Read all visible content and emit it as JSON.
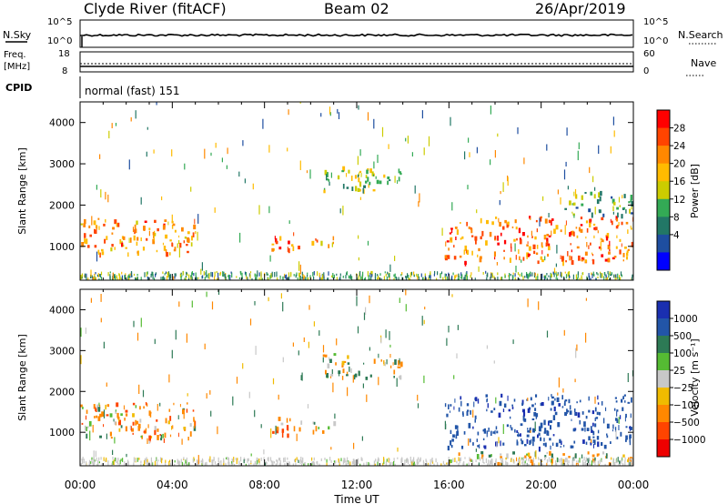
{
  "header": {
    "station": "Clyde River (fitACF)",
    "beam": "Beam 02",
    "date": "26/Apr/2019"
  },
  "nsky_panel": {
    "label": "N.Sky",
    "left_ticks": [
      "10^5",
      "10^0"
    ],
    "right_ticks": [
      "10^5",
      "10^0"
    ],
    "right_label": "N.Search"
  },
  "freq_panel": {
    "label_line1": "Freq.",
    "label_line2": "[MHz]",
    "left_ticks": [
      "18",
      "8"
    ],
    "right_ticks": [
      "60",
      "0"
    ],
    "right_label": "Nave"
  },
  "cpid_panel": {
    "label": "CPID",
    "value": "normal (fast) 151"
  },
  "power_panel": {
    "ylabel": "Slant Range [km]",
    "yticks": [
      "4000",
      "3000",
      "2000",
      "1000"
    ],
    "colorbar_label": "Power [dB]",
    "colorbar_ticks": [
      "28",
      "24",
      "20",
      "16",
      "12",
      "8",
      "4"
    ],
    "colorbar_colors": [
      "#ff0000",
      "#ff4400",
      "#ff8800",
      "#ffbb00",
      "#cccc00",
      "#33aa55",
      "#227766",
      "#1e4ea0",
      "#0000ff"
    ]
  },
  "velocity_panel": {
    "ylabel": "Slant Range [km]",
    "yticks": [
      "4000",
      "3000",
      "2000",
      "1000"
    ],
    "colorbar_label": "Velocity [m s⁻¹]",
    "colorbar_ticks": [
      "1000",
      "500",
      "100",
      "25",
      "−25",
      "−100",
      "−500",
      "−1000"
    ],
    "colorbar_colors": [
      "#1a2fb0",
      "#2255a8",
      "#2d7a55",
      "#55bb33",
      "#c8c8c8",
      "#f0bb00",
      "#ff8800",
      "#ff4400",
      "#ee0000"
    ]
  },
  "xaxis": {
    "label": "Time UT",
    "ticks": [
      "00:00",
      "04:00",
      "08:00",
      "12:00",
      "16:00",
      "20:00",
      "00:00"
    ]
  },
  "chart_data": {
    "type": "heatmap",
    "x_range_hours": [
      0,
      24
    ],
    "y_range_km": [
      180,
      4500
    ],
    "power_clusters": [
      {
        "t0": 0.0,
        "t1": 5.0,
        "r0": 800,
        "r1": 1650,
        "value_db": 22
      },
      {
        "t0": 8.2,
        "t1": 9.6,
        "r0": 900,
        "r1": 1350,
        "value_db": 26
      },
      {
        "t0": 10.0,
        "t1": 11.0,
        "r0": 950,
        "r1": 1250,
        "value_db": 20
      },
      {
        "t0": 10.5,
        "t1": 14.0,
        "r0": 2300,
        "r1": 2900,
        "value_db": 14
      },
      {
        "t0": 15.8,
        "t1": 24.0,
        "r0": 600,
        "r1": 1700,
        "value_db": 24
      },
      {
        "t0": 21.0,
        "t1": 24.0,
        "r0": 1700,
        "r1": 2300,
        "value_db": 10
      }
    ],
    "velocity_clusters": [
      {
        "t0": 0.0,
        "t1": 5.0,
        "r0": 800,
        "r1": 1700,
        "value_ms": -150
      },
      {
        "t0": 8.2,
        "t1": 9.6,
        "r0": 900,
        "r1": 1350,
        "value_ms": -200
      },
      {
        "t0": 10.0,
        "t1": 11.0,
        "r0": 950,
        "r1": 1250,
        "value_ms": -150
      },
      {
        "t0": 10.5,
        "t1": 14.0,
        "r0": 2300,
        "r1": 2900,
        "value_ms": 20
      },
      {
        "t0": 15.8,
        "t1": 24.0,
        "r0": 600,
        "r1": 1900,
        "value_ms": 600
      },
      {
        "t0": 16.0,
        "t1": 24.0,
        "r0": 200,
        "r1": 500,
        "value_ms": -40
      }
    ]
  }
}
